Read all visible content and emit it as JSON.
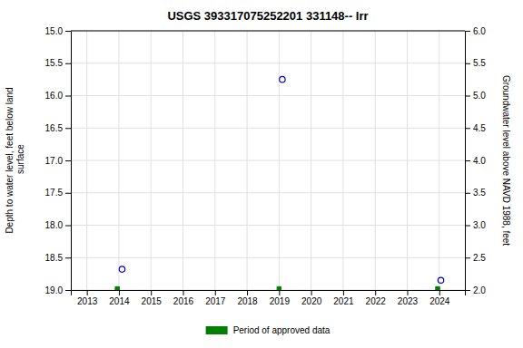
{
  "chart_data": {
    "type": "scatter",
    "title": "USGS 393317075252201 331148-- Irr",
    "ylabel": "Depth to water level, feet below land\n surface",
    "y2label": "Groundwater level above NAVD 1988, feet",
    "xlim": [
      2012.5,
      2024.8
    ],
    "ylim": [
      19.0,
      15.0
    ],
    "y2lim": [
      2.0,
      6.0
    ],
    "xticks": [
      2013,
      2014,
      2015,
      2016,
      2017,
      2018,
      2019,
      2020,
      2021,
      2022,
      2023,
      2024
    ],
    "yticks": [
      {
        "value": 15.0,
        "label": "15.0"
      },
      15.5,
      {
        "value": 16.0,
        "label": "16.0"
      },
      16.5,
      {
        "value": 17.0,
        "label": "17.0"
      },
      17.5,
      {
        "value": 18.0,
        "label": "18.0"
      },
      18.5,
      {
        "value": 19.0,
        "label": "19.0"
      }
    ],
    "y2ticks": [
      {
        "value": 2.0,
        "label": "2.0"
      },
      2.5,
      {
        "value": 3.0,
        "label": "3.0"
      },
      3.5,
      {
        "value": 4.0,
        "label": "4.0"
      },
      4.5,
      {
        "value": 5.0,
        "label": "5.0"
      },
      5.5,
      {
        "value": 6.0,
        "label": "6.0"
      }
    ],
    "grid": true,
    "legend": "bottom",
    "series": [
      {
        "color": "#0000cc",
        "marker": "circle",
        "x": [
          2014.1,
          2019.1,
          2024.05
        ],
        "values": [
          18.68,
          15.75,
          18.85
        ]
      },
      {
        "name": "Period of approved data",
        "color": "#008000",
        "marker": "square",
        "x": [
          2013.95,
          2019.0,
          2023.95
        ],
        "values": [
          18.98,
          18.98,
          18.98
        ]
      }
    ]
  }
}
